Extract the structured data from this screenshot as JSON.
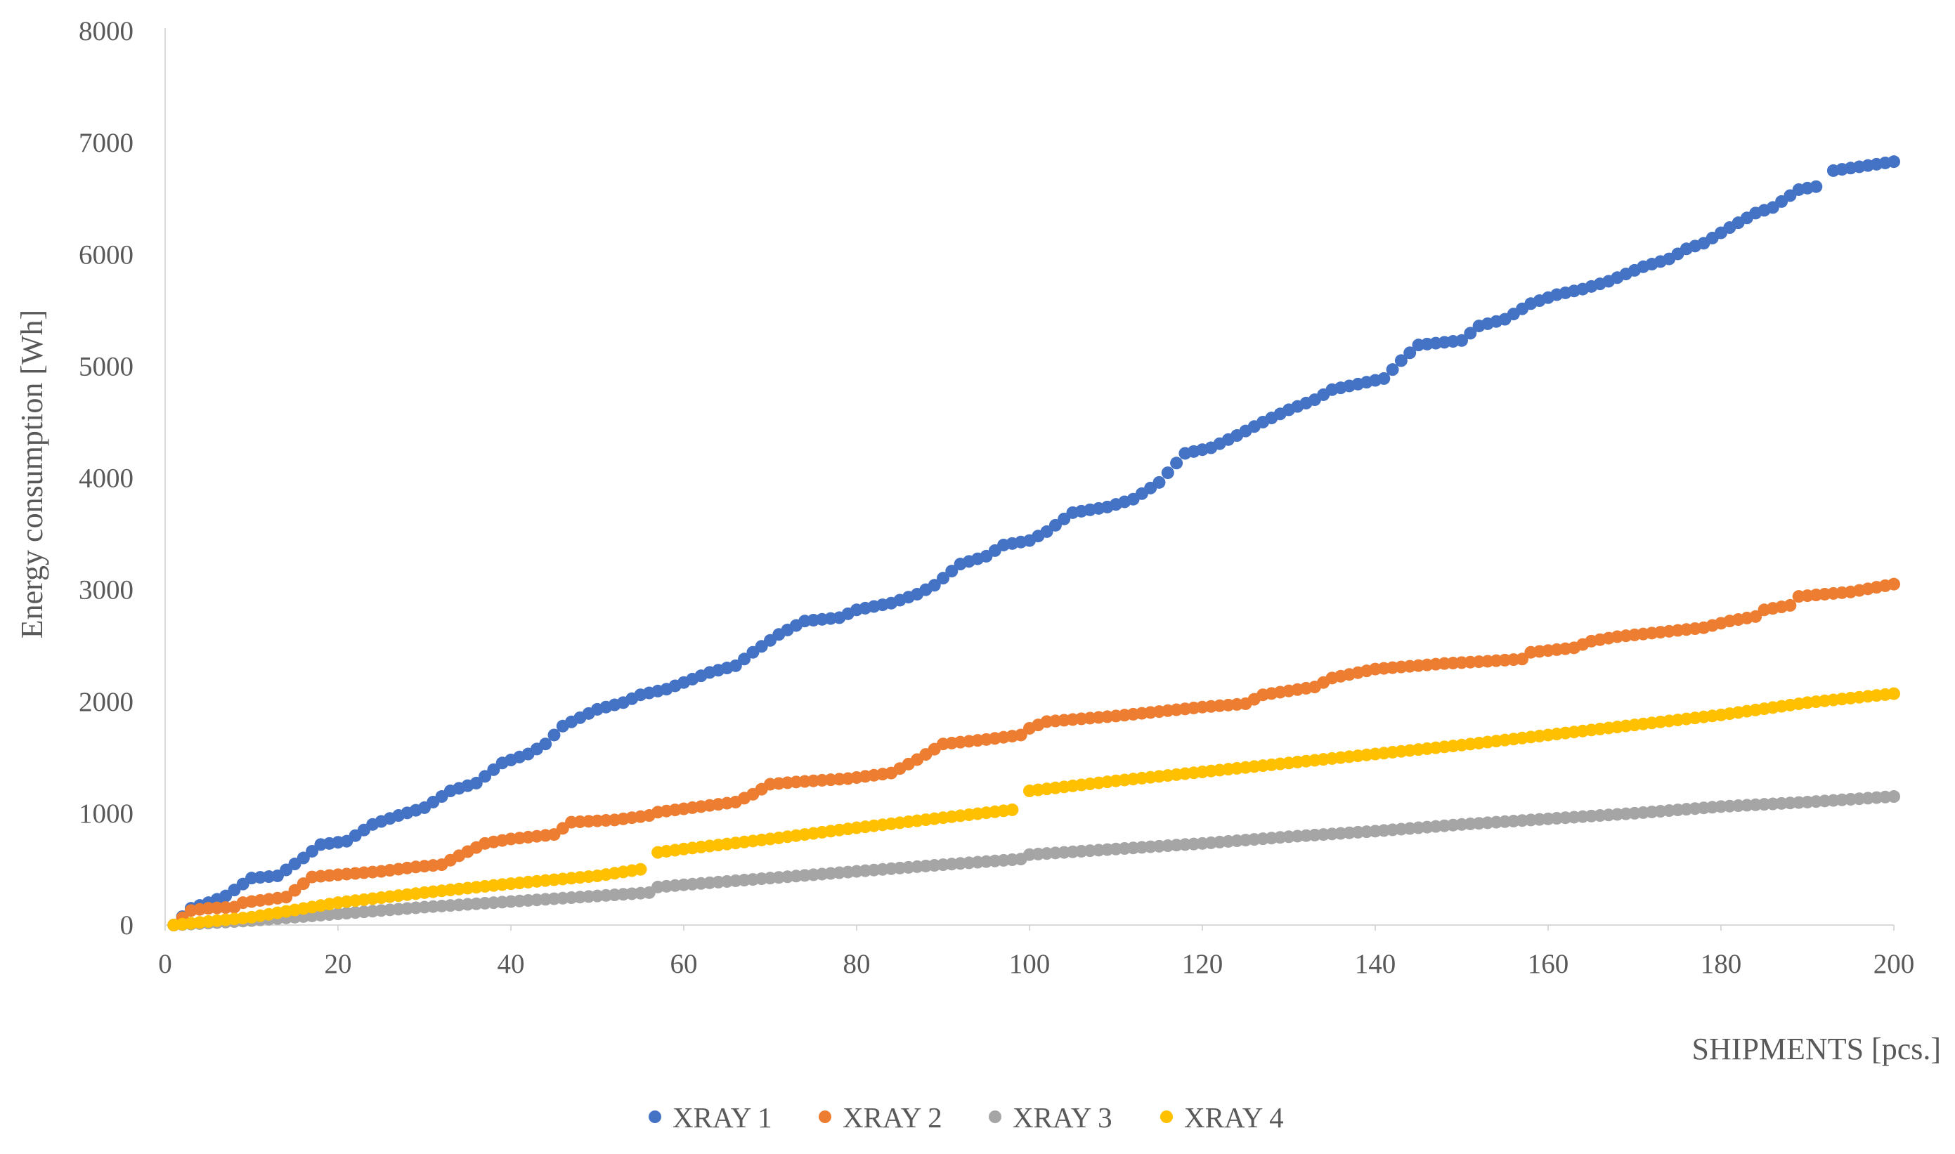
{
  "chart_data": {
    "type": "scatter",
    "title": "",
    "xlabel": "SHIPMENTS [pcs.]",
    "ylabel": "Energy consumption [Wh]",
    "xlim": [
      0,
      200
    ],
    "ylim": [
      0,
      8000
    ],
    "x_ticks": [
      0,
      20,
      40,
      60,
      80,
      100,
      120,
      140,
      160,
      180,
      200
    ],
    "y_ticks": [
      0,
      1000,
      2000,
      3000,
      4000,
      5000,
      6000,
      7000,
      8000
    ],
    "x_tick_labels": [
      "0",
      "20",
      "40",
      "60",
      "80",
      "100",
      "120",
      "140",
      "160",
      "180",
      "200"
    ],
    "y_tick_labels": [
      "0",
      "1000",
      "2000",
      "3000",
      "4000",
      "5000",
      "6000",
      "7000",
      "8000"
    ],
    "grid": false,
    "legend_position": "bottom",
    "series": [
      {
        "name": "XRAY 1",
        "color": "#4472C4",
        "points": [
          [
            1,
            0
          ],
          [
            3,
            150
          ],
          [
            5,
            200
          ],
          [
            7,
            260
          ],
          [
            10,
            420
          ],
          [
            13,
            440
          ],
          [
            16,
            600
          ],
          [
            18,
            720
          ],
          [
            21,
            750
          ],
          [
            24,
            900
          ],
          [
            27,
            980
          ],
          [
            30,
            1050
          ],
          [
            33,
            1200
          ],
          [
            36,
            1270
          ],
          [
            39,
            1450
          ],
          [
            42,
            1530
          ],
          [
            44,
            1620
          ],
          [
            46,
            1780
          ],
          [
            50,
            1930
          ],
          [
            53,
            1990
          ],
          [
            55,
            2060
          ],
          [
            58,
            2110
          ],
          [
            61,
            2200
          ],
          [
            63,
            2260
          ],
          [
            66,
            2320
          ],
          [
            68,
            2440
          ],
          [
            71,
            2600
          ],
          [
            74,
            2720
          ],
          [
            78,
            2750
          ],
          [
            80,
            2820
          ],
          [
            84,
            2880
          ],
          [
            87,
            2960
          ],
          [
            89,
            3040
          ],
          [
            92,
            3230
          ],
          [
            95,
            3300
          ],
          [
            97,
            3400
          ],
          [
            100,
            3440
          ],
          [
            102,
            3520
          ],
          [
            105,
            3690
          ],
          [
            109,
            3740
          ],
          [
            112,
            3810
          ],
          [
            115,
            3960
          ],
          [
            118,
            4220
          ],
          [
            121,
            4270
          ],
          [
            124,
            4380
          ],
          [
            127,
            4500
          ],
          [
            130,
            4610
          ],
          [
            133,
            4700
          ],
          [
            135,
            4790
          ],
          [
            138,
            4840
          ],
          [
            141,
            4890
          ],
          [
            143,
            5050
          ],
          [
            145,
            5190
          ],
          [
            150,
            5230
          ],
          [
            152,
            5360
          ],
          [
            155,
            5420
          ],
          [
            158,
            5560
          ],
          [
            161,
            5640
          ],
          [
            164,
            5690
          ],
          [
            167,
            5760
          ],
          [
            171,
            5890
          ],
          [
            174,
            5960
          ],
          [
            176,
            6050
          ],
          [
            178,
            6100
          ],
          [
            181,
            6240
          ],
          [
            184,
            6370
          ],
          [
            186,
            6420
          ],
          [
            189,
            6580
          ],
          [
            192,
            6620
          ],
          [
            193,
            6750
          ],
          [
            200,
            6830
          ]
        ]
      },
      {
        "name": "XRAY 2",
        "color": "#ED7D31",
        "points": [
          [
            1,
            0
          ],
          [
            3,
            130
          ],
          [
            5,
            150
          ],
          [
            8,
            160
          ],
          [
            9,
            200
          ],
          [
            14,
            250
          ],
          [
            17,
            430
          ],
          [
            20,
            450
          ],
          [
            25,
            480
          ],
          [
            29,
            520
          ],
          [
            32,
            540
          ],
          [
            34,
            620
          ],
          [
            37,
            730
          ],
          [
            40,
            770
          ],
          [
            45,
            810
          ],
          [
            47,
            920
          ],
          [
            52,
            940
          ],
          [
            56,
            980
          ],
          [
            57,
            1010
          ],
          [
            60,
            1040
          ],
          [
            66,
            1100
          ],
          [
            68,
            1170
          ],
          [
            70,
            1260
          ],
          [
            73,
            1280
          ],
          [
            79,
            1310
          ],
          [
            82,
            1340
          ],
          [
            84,
            1360
          ],
          [
            87,
            1480
          ],
          [
            90,
            1620
          ],
          [
            95,
            1660
          ],
          [
            99,
            1700
          ],
          [
            100,
            1760
          ],
          [
            102,
            1820
          ],
          [
            110,
            1870
          ],
          [
            115,
            1910
          ],
          [
            120,
            1950
          ],
          [
            125,
            1980
          ],
          [
            127,
            2060
          ],
          [
            133,
            2130
          ],
          [
            135,
            2210
          ],
          [
            140,
            2290
          ],
          [
            148,
            2340
          ],
          [
            153,
            2360
          ],
          [
            157,
            2380
          ],
          [
            158,
            2440
          ],
          [
            163,
            2480
          ],
          [
            165,
            2540
          ],
          [
            168,
            2580
          ],
          [
            173,
            2620
          ],
          [
            178,
            2660
          ],
          [
            181,
            2720
          ],
          [
            184,
            2760
          ],
          [
            185,
            2820
          ],
          [
            188,
            2860
          ],
          [
            189,
            2940
          ],
          [
            195,
            2980
          ],
          [
            200,
            3050
          ]
        ]
      },
      {
        "name": "XRAY 3",
        "color": "#A5A5A5",
        "points": [
          [
            1,
            0
          ],
          [
            10,
            40
          ],
          [
            20,
            100
          ],
          [
            30,
            160
          ],
          [
            40,
            210
          ],
          [
            50,
            260
          ],
          [
            56,
            290
          ],
          [
            57,
            340
          ],
          [
            60,
            360
          ],
          [
            70,
            420
          ],
          [
            80,
            480
          ],
          [
            90,
            540
          ],
          [
            99,
            590
          ],
          [
            100,
            630
          ],
          [
            110,
            680
          ],
          [
            120,
            730
          ],
          [
            130,
            790
          ],
          [
            140,
            840
          ],
          [
            150,
            900
          ],
          [
            160,
            950
          ],
          [
            170,
            1000
          ],
          [
            180,
            1060
          ],
          [
            190,
            1100
          ],
          [
            200,
            1150
          ]
        ]
      },
      {
        "name": "XRAY 4",
        "color": "#FFC000",
        "points": [
          [
            1,
            0
          ],
          [
            10,
            70
          ],
          [
            20,
            200
          ],
          [
            30,
            290
          ],
          [
            40,
            370
          ],
          [
            50,
            440
          ],
          [
            56,
            510
          ],
          [
            57,
            650
          ],
          [
            60,
            680
          ],
          [
            70,
            770
          ],
          [
            80,
            870
          ],
          [
            90,
            960
          ],
          [
            99,
            1040
          ],
          [
            100,
            1200
          ],
          [
            110,
            1290
          ],
          [
            120,
            1370
          ],
          [
            130,
            1450
          ],
          [
            140,
            1530
          ],
          [
            150,
            1610
          ],
          [
            160,
            1700
          ],
          [
            170,
            1790
          ],
          [
            180,
            1880
          ],
          [
            190,
            1990
          ],
          [
            200,
            2070
          ]
        ]
      }
    ]
  }
}
